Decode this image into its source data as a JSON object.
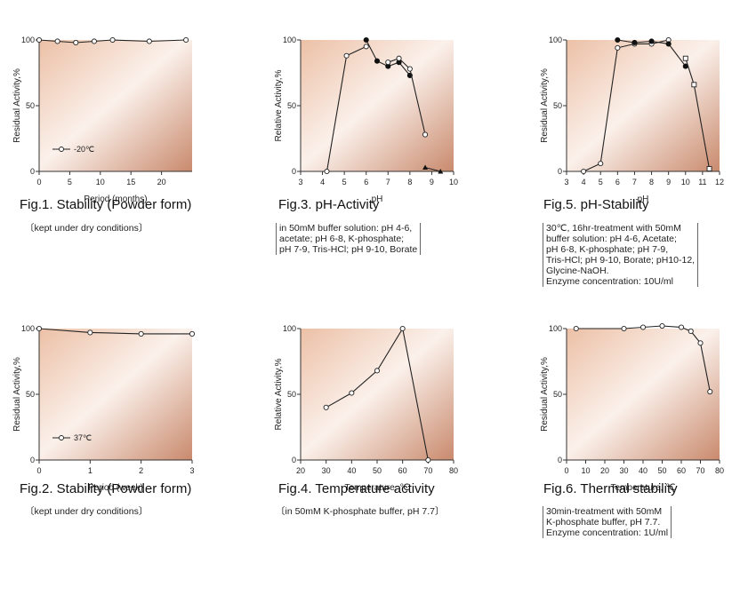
{
  "charts": [
    {
      "id": "fig1",
      "title": "Fig.1. Stability (Powder form)",
      "note": [
        "〔kept under dry conditions〕"
      ],
      "ylabel": "Residual Activity,%",
      "xlabel": "Period (months)",
      "xlim": [
        0,
        25
      ],
      "ylim": [
        0,
        100
      ],
      "xticks": [
        0,
        5,
        10,
        15,
        20
      ],
      "yticks": [
        0,
        50,
        100
      ],
      "legend": {
        "label": "-20℃",
        "position": "lower-left"
      },
      "series": [
        {
          "marker": "open",
          "x": [
            0,
            3,
            6,
            9,
            12,
            18,
            24
          ],
          "y": [
            100,
            99,
            98,
            99,
            100,
            99,
            100
          ]
        }
      ]
    },
    {
      "id": "fig3",
      "title": "Fig.3. pH-Activity",
      "note": [
        "in 50mM buffer solution: pH 4-6,",
        "acetate; pH 6-8, K-phosphate;",
        "pH 7-9, Tris-HCl; pH 9-10, Borate"
      ],
      "ylabel": "Relative Activity,%",
      "xlabel": "pH",
      "xlim": [
        3,
        10
      ],
      "ylim": [
        0,
        100
      ],
      "xticks": [
        3,
        4,
        5,
        6,
        7,
        8,
        9,
        10
      ],
      "yticks": [
        0,
        50,
        100
      ],
      "series": [
        {
          "marker": "open",
          "x": [
            4.2,
            5.1,
            6.0
          ],
          "y": [
            0,
            88,
            95
          ]
        },
        {
          "marker": "filled",
          "x": [
            6.0,
            6.5,
            7.0,
            7.5,
            8.0
          ],
          "y": [
            100,
            84,
            80,
            83,
            73
          ]
        },
        {
          "marker": "open",
          "x": [
            7.0,
            7.5,
            8.0,
            8.7
          ],
          "y": [
            83,
            86,
            78,
            28
          ]
        },
        {
          "marker": "filled-tri",
          "x": [
            8.7,
            9.4
          ],
          "y": [
            3,
            0
          ]
        }
      ]
    },
    {
      "id": "fig5",
      "title": "Fig.5. pH-Stability",
      "note": [
        "30℃, 16hr-treatment with 50mM",
        "buffer solution: pH 4-6, Acetate;",
        "pH 6-8, K-phosphate; pH 7-9,",
        "Tris-HCl; pH 9-10, Borate; pH10-12,",
        "Glycine-NaOH.",
        "Enzyme concentration: 10U/ml"
      ],
      "ylabel": "Residual Activity,%",
      "xlabel": "pH",
      "xlim": [
        3,
        12
      ],
      "ylim": [
        0,
        100
      ],
      "xticks": [
        3,
        4,
        5,
        6,
        7,
        8,
        9,
        10,
        11,
        12
      ],
      "yticks": [
        0,
        50,
        100
      ],
      "series": [
        {
          "marker": "open",
          "x": [
            4.0,
            5.0,
            6.0,
            7.0,
            8.0,
            9.0
          ],
          "y": [
            0,
            6,
            94,
            97,
            97,
            100
          ]
        },
        {
          "marker": "filled",
          "x": [
            6.0,
            7.0,
            8.0,
            9.0,
            10.0
          ],
          "y": [
            100,
            98,
            99,
            97,
            80
          ]
        },
        {
          "marker": "open-sq",
          "x": [
            10.0,
            10.5,
            11.4
          ],
          "y": [
            86,
            66,
            2
          ]
        }
      ]
    },
    {
      "id": "fig2",
      "title": "Fig.2. Stability (Powder form)",
      "note": [
        "〔kept under dry conditions〕"
      ],
      "ylabel": "Residual Activity,%",
      "xlabel": "Period (week)",
      "xlim": [
        0,
        3
      ],
      "ylim": [
        0,
        100
      ],
      "xticks": [
        0,
        1,
        2,
        3
      ],
      "yticks": [
        0,
        50,
        100
      ],
      "legend": {
        "label": "37℃",
        "position": "lower-left"
      },
      "series": [
        {
          "marker": "open",
          "x": [
            0,
            1,
            2,
            3
          ],
          "y": [
            100,
            97,
            96,
            96
          ]
        }
      ]
    },
    {
      "id": "fig4",
      "title": "Fig.4. Temperature activity",
      "note": [
        "〔in 50mM K-phosphate buffer, pH 7.7〕"
      ],
      "ylabel": "Relative Activity,%",
      "xlabel": "Temperature, ℃",
      "xlim": [
        20,
        80
      ],
      "ylim": [
        0,
        100
      ],
      "xticks": [
        20,
        30,
        40,
        50,
        60,
        70,
        80
      ],
      "yticks": [
        0,
        50,
        100
      ],
      "series": [
        {
          "marker": "open",
          "x": [
            30,
            40,
            50,
            60,
            70
          ],
          "y": [
            40,
            51,
            68,
            100,
            0
          ]
        }
      ]
    },
    {
      "id": "fig6",
      "title": "Fig.6. Thermal stability",
      "note": [
        "30min-treatment with 50mM",
        "K-phosphate buffer, pH 7.7.",
        "Enzyme concentration: 1U/ml"
      ],
      "ylabel": "Residual Activity,%",
      "xlabel": "Temperature, ℃",
      "xlim": [
        0,
        80
      ],
      "ylim": [
        0,
        100
      ],
      "xticks": [
        0,
        10,
        20,
        30,
        40,
        50,
        60,
        70,
        80
      ],
      "yticks": [
        0,
        50,
        100
      ],
      "series": [
        {
          "marker": "open",
          "x": [
            5,
            30,
            40,
            50,
            60,
            65,
            70,
            75
          ],
          "y": [
            100,
            100,
            101,
            102,
            101,
            98,
            89,
            52
          ]
        }
      ]
    }
  ],
  "chart_data": [
    {
      "type": "line",
      "title": "Fig.1. Stability (Powder form)",
      "xlabel": "Period (months)",
      "ylabel": "Residual Activity,%",
      "xlim": [
        0,
        25
      ],
      "ylim": [
        0,
        100
      ],
      "series": [
        {
          "name": "-20℃",
          "x": [
            0,
            3,
            6,
            9,
            12,
            18,
            24
          ],
          "y": [
            100,
            99,
            98,
            99,
            100,
            99,
            100
          ]
        }
      ]
    },
    {
      "type": "line",
      "title": "Fig.2. Stability (Powder form)",
      "xlabel": "Period (week)",
      "ylabel": "Residual Activity,%",
      "xlim": [
        0,
        3
      ],
      "ylim": [
        0,
        100
      ],
      "series": [
        {
          "name": "37℃",
          "x": [
            0,
            1,
            2,
            3
          ],
          "y": [
            100,
            97,
            96,
            96
          ]
        }
      ]
    },
    {
      "type": "line",
      "title": "Fig.3. pH-Activity",
      "xlabel": "pH",
      "ylabel": "Relative Activity,%",
      "xlim": [
        3,
        10
      ],
      "ylim": [
        0,
        100
      ],
      "series": [
        {
          "x": [
            4.2,
            5.1,
            6.0
          ],
          "y": [
            0,
            88,
            95
          ]
        },
        {
          "x": [
            6.0,
            6.5,
            7.0,
            7.5,
            8.0
          ],
          "y": [
            100,
            84,
            80,
            83,
            73
          ]
        },
        {
          "x": [
            7.0,
            7.5,
            8.0,
            8.7
          ],
          "y": [
            83,
            86,
            78,
            28
          ]
        },
        {
          "x": [
            8.7,
            9.4
          ],
          "y": [
            3,
            0
          ]
        }
      ]
    },
    {
      "type": "line",
      "title": "Fig.4. Temperature activity",
      "xlabel": "Temperature, ℃",
      "ylabel": "Relative Activity,%",
      "xlim": [
        20,
        80
      ],
      "ylim": [
        0,
        100
      ],
      "series": [
        {
          "x": [
            30,
            40,
            50,
            60,
            70
          ],
          "y": [
            40,
            51,
            68,
            100,
            0
          ]
        }
      ]
    },
    {
      "type": "line",
      "title": "Fig.5. pH-Stability",
      "xlabel": "pH",
      "ylabel": "Residual Activity,%",
      "xlim": [
        3,
        12
      ],
      "ylim": [
        0,
        100
      ],
      "series": [
        {
          "x": [
            4.0,
            5.0,
            6.0,
            7.0,
            8.0,
            9.0
          ],
          "y": [
            0,
            6,
            94,
            97,
            97,
            100
          ]
        },
        {
          "x": [
            6.0,
            7.0,
            8.0,
            9.0,
            10.0
          ],
          "y": [
            100,
            98,
            99,
            97,
            80
          ]
        },
        {
          "x": [
            10.0,
            10.5,
            11.4
          ],
          "y": [
            86,
            66,
            2
          ]
        }
      ]
    },
    {
      "type": "line",
      "title": "Fig.6. Thermal stability",
      "xlabel": "Temperature, ℃",
      "ylabel": "Residual Activity,%",
      "xlim": [
        0,
        80
      ],
      "ylim": [
        0,
        100
      ],
      "series": [
        {
          "x": [
            5,
            30,
            40,
            50,
            60,
            65,
            70,
            75
          ],
          "y": [
            100,
            100,
            101,
            102,
            101,
            98,
            89,
            52
          ]
        }
      ]
    }
  ]
}
